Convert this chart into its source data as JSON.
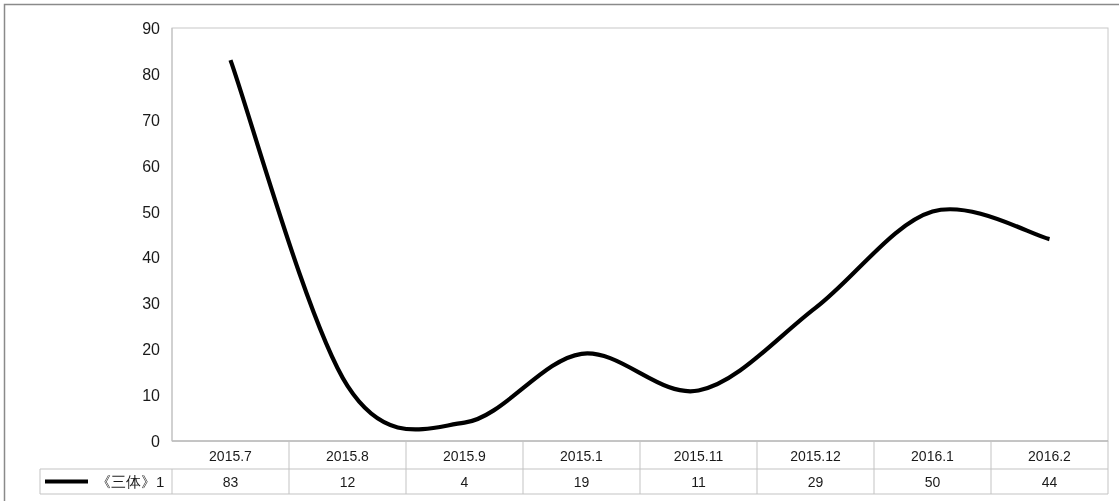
{
  "chart_data": {
    "type": "line",
    "categories": [
      "2015.7",
      "2015.8",
      "2015.9",
      "2015.1",
      "2015.11",
      "2015.12",
      "2016.1",
      "2016.2"
    ],
    "series": [
      {
        "name": "《三体》1",
        "color": "#000000",
        "values": [
          83,
          12,
          4,
          19,
          11,
          29,
          50,
          44
        ]
      }
    ],
    "ylim": [
      0,
      90
    ],
    "yticks": [
      0,
      10,
      20,
      30,
      40,
      50,
      60,
      70,
      80,
      90
    ],
    "data_labels": true,
    "legend": "bottom"
  }
}
